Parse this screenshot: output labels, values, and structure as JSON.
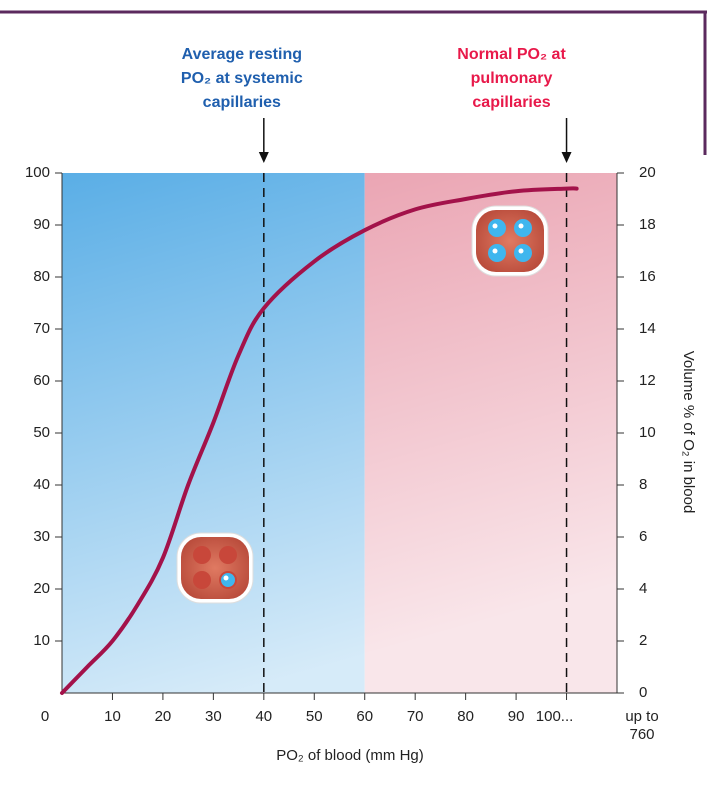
{
  "chart_data": {
    "type": "line",
    "x": [
      0,
      5,
      10,
      15,
      20,
      25,
      30,
      35,
      40,
      50,
      60,
      70,
      80,
      90,
      100,
      102
    ],
    "values": [
      0,
      5,
      10,
      17,
      26,
      40,
      52,
      65,
      74,
      83,
      89,
      93,
      95,
      96.5,
      97,
      97
    ],
    "color": "#a3124a",
    "xlim": [
      0,
      110
    ],
    "ylim": [
      0,
      100
    ],
    "xticks": [
      0,
      10,
      20,
      30,
      40,
      50,
      60,
      70,
      80,
      90,
      {
        "value": 100,
        "label": "100..."
      }
    ],
    "x_end_label": [
      "up to",
      "760"
    ],
    "yticks": [
      10,
      20,
      30,
      40,
      50,
      60,
      70,
      80,
      90,
      100
    ],
    "y2lim": [
      0,
      20
    ],
    "y2ticks": [
      0,
      2,
      4,
      6,
      8,
      10,
      12,
      14,
      16,
      18,
      20
    ],
    "xlabel": "PO₂ of blood (mm Hg)",
    "y2label": "Volume % of O₂ in blood",
    "regions": [
      {
        "from": 0,
        "to": 60,
        "color": "#5aaee6"
      },
      {
        "from": 60,
        "to": 110,
        "color": "#e89aaa"
      }
    ],
    "annotations": [
      {
        "x": 40,
        "lines": [
          "Average resting",
          "PO₂ at systemic",
          "capillaries"
        ],
        "color": "#1f5fae"
      },
      {
        "x": 100,
        "lines": [
          "Normal PO₂ at",
          "pulmonary",
          "capillaries"
        ],
        "color": "#e8194a"
      }
    ]
  }
}
